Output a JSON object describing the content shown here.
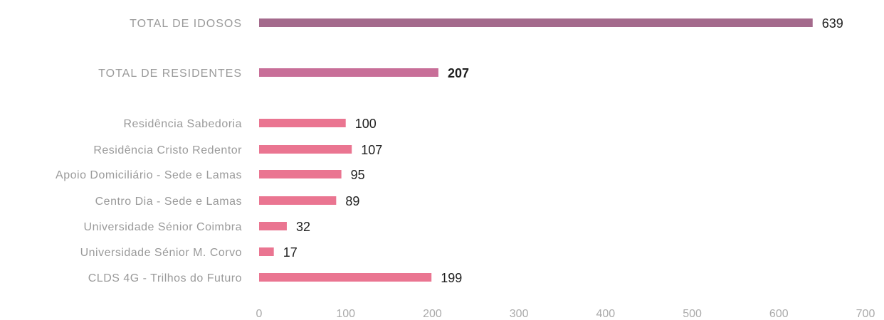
{
  "chart_data": {
    "type": "bar",
    "orientation": "horizontal",
    "title": "",
    "xlabel": "",
    "ylabel": "",
    "xlim": [
      0,
      700
    ],
    "xticks": [
      0,
      100,
      200,
      300,
      400,
      500,
      600,
      700
    ],
    "xtick_labels": [
      "0",
      "100",
      "200",
      "300",
      "400",
      "500",
      "600",
      "700"
    ],
    "grid": false,
    "legend": "none",
    "categories": [
      "TOTAL DE IDOSOS",
      "TOTAL DE RESIDENTES",
      "Residência Sabedoria",
      "Residência Cristo Redentor",
      "Apoio Domiciliário - Sede e Lamas",
      "Centro Dia - Sede e Lamas",
      "Universidade Sénior Coimbra",
      "Universidade Sénior M. Corvo",
      "CLDS 4G - Trilhos do Futuro"
    ],
    "values": [
      639,
      207,
      100,
      107,
      95,
      89,
      32,
      17,
      199
    ],
    "value_labels": [
      "639",
      "207",
      "100",
      "107",
      "95",
      "89",
      "32",
      "17",
      "199"
    ],
    "colors": [
      "#a46a8c",
      "#c86e98",
      "#ea7591",
      "#ea7591",
      "#ea7591",
      "#ea7591",
      "#ea7591",
      "#ea7591",
      "#ea7591"
    ],
    "bold_value_labels": [
      false,
      true,
      false,
      false,
      false,
      false,
      false,
      false,
      false
    ]
  }
}
